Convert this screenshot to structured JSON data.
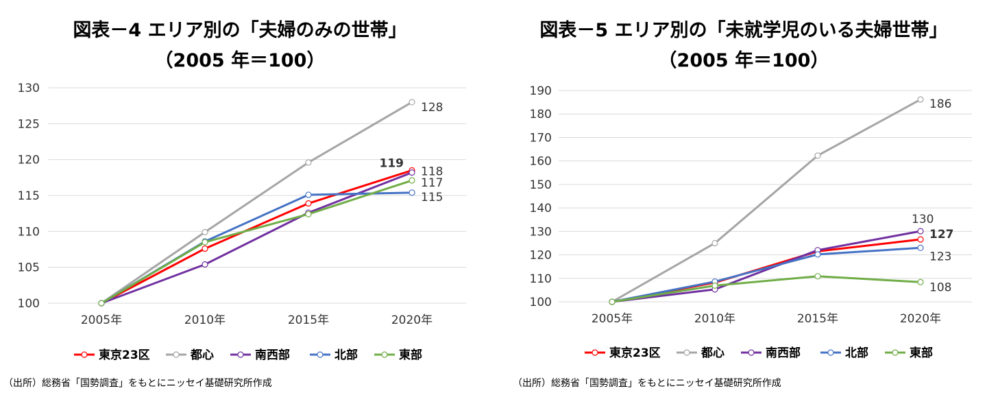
{
  "colors": {
    "tokyo23": "#ff0000",
    "toshin": "#a5a5a5",
    "nanseibu": "#7030a0",
    "hokubu": "#4472c4",
    "tobu": "#70ad47"
  },
  "charts": [
    {
      "title_line1": "図表－4 エリア別の「夫婦のみの世帯」",
      "title_line2": "（2005 年＝100）",
      "source": "（出所）総務省「国勢調査」をもとにニッセイ基礎研究所作成",
      "chart_data": {
        "type": "line",
        "categories": [
          "2005年",
          "2010年",
          "2015年",
          "2020年"
        ],
        "ylim": [
          100,
          130
        ],
        "yticks": [
          100,
          105,
          110,
          115,
          120,
          125,
          130
        ],
        "grid": true,
        "legend_position": "bottom",
        "series": [
          {
            "name": "東京23区",
            "color": "#ff0000",
            "values": [
              100,
              107.6,
              113.9,
              118.5
            ],
            "end_label": "119",
            "end_label_color": "#ff0000"
          },
          {
            "name": "都心",
            "color": "#a5a5a5",
            "values": [
              100,
              109.9,
              119.6,
              128.0
            ],
            "end_label": "128",
            "end_label_color": "#333333"
          },
          {
            "name": "南西部",
            "color": "#7030a0",
            "values": [
              100,
              105.4,
              112.6,
              118.2
            ],
            "end_label": "118",
            "end_label_color": "#333333"
          },
          {
            "name": "北部",
            "color": "#4472c4",
            "values": [
              100,
              108.6,
              115.1,
              115.4
            ],
            "end_label": "115",
            "end_label_color": "#333333"
          },
          {
            "name": "東部",
            "color": "#70ad47",
            "values": [
              100,
              108.5,
              112.4,
              117.1
            ],
            "end_label": "117",
            "end_label_color": "#333333"
          }
        ]
      }
    },
    {
      "title_line1": "図表－5 エリア別の「未就学児のいる夫婦世帯」",
      "title_line2": "（2005 年＝100）",
      "source": "（出所）総務省「国勢調査」をもとにニッセイ基礎研究所作成",
      "chart_data": {
        "type": "line",
        "categories": [
          "2005年",
          "2010年",
          "2015年",
          "2020年"
        ],
        "ylim": [
          100,
          190
        ],
        "yticks": [
          100,
          110,
          120,
          130,
          140,
          150,
          160,
          170,
          180,
          190
        ],
        "grid": true,
        "legend_position": "bottom",
        "series": [
          {
            "name": "東京23区",
            "color": "#ff0000",
            "values": [
              100,
              108.2,
              121.5,
              126.6
            ],
            "end_label": "127",
            "end_label_color": "#ff0000"
          },
          {
            "name": "都心",
            "color": "#a5a5a5",
            "values": [
              100,
              125.0,
              162.3,
              186.2
            ],
            "end_label": "186",
            "end_label_color": "#333333"
          },
          {
            "name": "南西部",
            "color": "#7030a0",
            "values": [
              100,
              105.3,
              122.0,
              130.1
            ],
            "end_label": "130",
            "end_label_color": "#333333"
          },
          {
            "name": "北部",
            "color": "#4472c4",
            "values": [
              100,
              108.6,
              120.2,
              123.0
            ],
            "end_label": "123",
            "end_label_color": "#333333"
          },
          {
            "name": "東部",
            "color": "#70ad47",
            "values": [
              100,
              106.9,
              110.9,
              108.4
            ],
            "end_label": "108",
            "end_label_color": "#333333"
          }
        ]
      }
    }
  ]
}
